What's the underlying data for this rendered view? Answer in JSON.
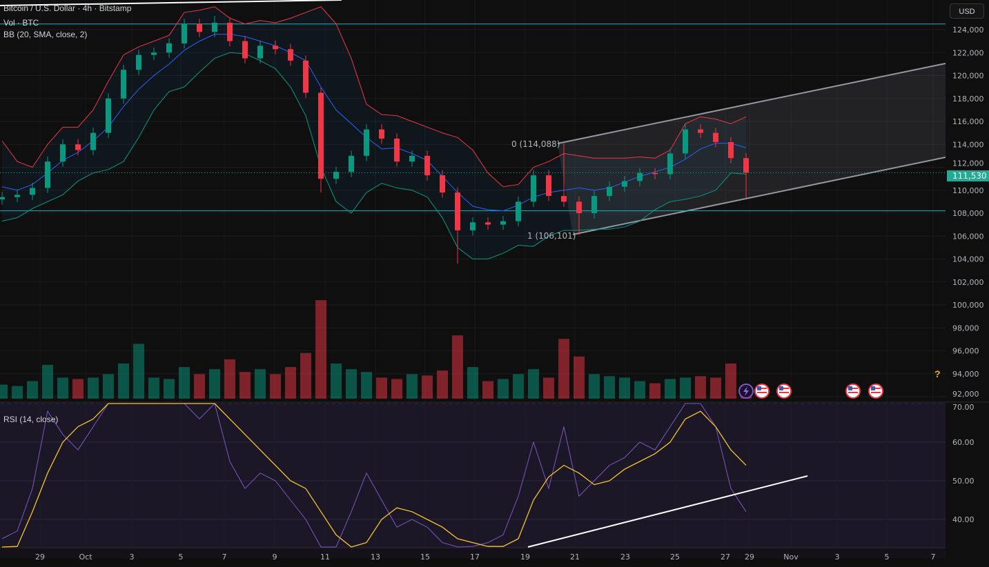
{
  "legend": {
    "symbol": "Bitcoin / U.S. Dollar · 4h · Bitstamp",
    "volume": "Vol · BTC",
    "bb": "BB (20, SMA, close, 2)",
    "rsi": "RSI (14, close)"
  },
  "currency_button": "USD",
  "help_icon": "?",
  "current_price_label": "111,530",
  "colors": {
    "up": "#089981",
    "down": "#f23645",
    "bb_mid": "#2962ff",
    "bb_upper": "#f23645",
    "bb_lower": "#089981",
    "rsi": "#7e57c2",
    "rsi_ma": "#f7c52b",
    "hline": "#1fb3c1",
    "price_tag": "#22ab94"
  },
  "drawings": {
    "fib_top_label": "0 (114,088)",
    "fib_bottom_label": "1 (106,101)",
    "horizontal_levels": [
      124500,
      108200
    ]
  },
  "chart_data": {
    "type": "candlestick",
    "title": "Bitcoin / U.S. Dollar · 4h · Bitstamp",
    "price_unit_note": "prices in thousands USD",
    "y_ticks": [
      "124,000",
      "122,000",
      "120,000",
      "118,000",
      "116,000",
      "114,000",
      "112,000",
      "110,000",
      "108,000",
      "106,000",
      "104,000",
      "102,000",
      "100,000",
      "98,000",
      "96,000",
      "94,000",
      "92,000"
    ],
    "y_tick_values": [
      124,
      122,
      120,
      118,
      116,
      114,
      112,
      110,
      108,
      106,
      104,
      102,
      100,
      98,
      96,
      94,
      92
    ],
    "x_ticks": [
      "29",
      "Oct",
      "3",
      "5",
      "7",
      "9",
      "11",
      "13",
      "15",
      "17",
      "19",
      "21",
      "23",
      "25",
      "27",
      "29",
      "Nov",
      "3",
      "5",
      "7"
    ],
    "first_open": 109.2,
    "close": [
      109.4,
      109.6,
      110.2,
      112.5,
      114.0,
      113.5,
      115.0,
      118.0,
      120.5,
      121.8,
      122.0,
      122.8,
      124.5,
      123.8,
      124.6,
      123.0,
      121.5,
      122.6,
      122.3,
      121.3,
      118.5,
      111.0,
      111.6,
      113.0,
      115.3,
      114.5,
      112.5,
      113.0,
      111.3,
      109.8,
      106.5,
      107.2,
      107.0,
      107.3,
      109.0,
      111.3,
      109.5,
      109.0,
      108.0,
      109.5,
      110.3,
      110.8,
      111.5,
      111.4,
      113.2,
      115.3,
      115.0,
      114.2,
      112.8,
      111.53
    ],
    "wick_overrides": {
      "14": {
        "h": 125.2
      },
      "21": {
        "l": 109.8
      },
      "30": {
        "l": 103.6
      },
      "37": {
        "h": 114.088
      },
      "38": {
        "l": 106.101
      },
      "49": {
        "l": 109.3
      }
    },
    "bb_mid": [
      110.3,
      110.0,
      110.5,
      111.5,
      112.6,
      113.3,
      114.3,
      115.5,
      117.3,
      118.8,
      120.0,
      121.0,
      122.2,
      123.0,
      123.6,
      123.6,
      123.4,
      123.0,
      122.6,
      122.0,
      121.3,
      119.0,
      117.0,
      115.8,
      114.6,
      113.6,
      113.7,
      113.2,
      112.6,
      111.2,
      109.8,
      108.6,
      108.3,
      108.2,
      108.7,
      109.4,
      109.8,
      110.0,
      110.2,
      110.0,
      110.2,
      110.7,
      111.2,
      111.6,
      112.0,
      112.7,
      113.6,
      114.1,
      114.1,
      113.7
    ],
    "bb_upper": [
      114.3,
      112.5,
      112.0,
      114.0,
      115.5,
      115.5,
      117.0,
      119.5,
      121.8,
      122.5,
      123.0,
      123.5,
      125.5,
      125.7,
      126.0,
      125.0,
      124.5,
      124.8,
      124.6,
      125.0,
      125.5,
      126.0,
      124.5,
      121.5,
      117.5,
      116.6,
      116.5,
      116.0,
      115.5,
      115.0,
      114.6,
      113.5,
      111.5,
      110.3,
      110.5,
      112.0,
      112.5,
      113.2,
      113.0,
      112.8,
      112.8,
      112.8,
      112.9,
      112.8,
      113.5,
      115.8,
      116.4,
      116.2,
      115.8,
      116.4
    ],
    "bb_lower": [
      107.3,
      107.6,
      108.4,
      109.0,
      109.6,
      110.8,
      111.5,
      111.8,
      112.5,
      114.6,
      117.0,
      118.6,
      119.0,
      120.3,
      121.5,
      122.0,
      121.9,
      121.3,
      120.6,
      119.0,
      116.5,
      112.0,
      109.0,
      108.0,
      109.8,
      110.6,
      110.2,
      110.0,
      109.4,
      107.6,
      105.0,
      104.0,
      104.0,
      104.5,
      105.2,
      105.1,
      106.0,
      106.5,
      106.5,
      106.6,
      106.6,
      106.8,
      107.3,
      108.3,
      109.0,
      109.2,
      109.5,
      110.0,
      111.5,
      111.4
    ],
    "volume": [
      200,
      180,
      250,
      480,
      300,
      280,
      300,
      350,
      500,
      780,
      300,
      280,
      450,
      350,
      420,
      560,
      380,
      420,
      350,
      450,
      650,
      1400,
      500,
      420,
      380,
      300,
      280,
      350,
      330,
      400,
      900,
      450,
      250,
      280,
      350,
      420,
      300,
      850,
      600,
      350,
      320,
      300,
      250,
      220,
      280,
      300,
      320,
      300,
      500,
      150
    ],
    "rsi": {
      "ticks": [
        "70.00",
        "60.00",
        "50.00",
        "40.00"
      ],
      "tick_values": [
        70,
        60,
        50,
        40
      ],
      "values": [
        35,
        37,
        48,
        68,
        62,
        58,
        64,
        75,
        78,
        80,
        72,
        70,
        78,
        66,
        75,
        55,
        48,
        52,
        50,
        45,
        40,
        28,
        32,
        42,
        52,
        45,
        38,
        40,
        38,
        34,
        28,
        33,
        34,
        36,
        46,
        60,
        48,
        64,
        46,
        50,
        54,
        56,
        60,
        58,
        64,
        72,
        70,
        64,
        48,
        42
      ],
      "ma": [
        30,
        33,
        42,
        52,
        60,
        64,
        66,
        70,
        73,
        74,
        73,
        72,
        72,
        70,
        70,
        66,
        62,
        58,
        54,
        50,
        48,
        42,
        36,
        32,
        34,
        40,
        43,
        42,
        40,
        38,
        35,
        34,
        33,
        33,
        35,
        45,
        51,
        54,
        52,
        49,
        50,
        53,
        55,
        57,
        60,
        66,
        68,
        64,
        58,
        54
      ]
    }
  }
}
